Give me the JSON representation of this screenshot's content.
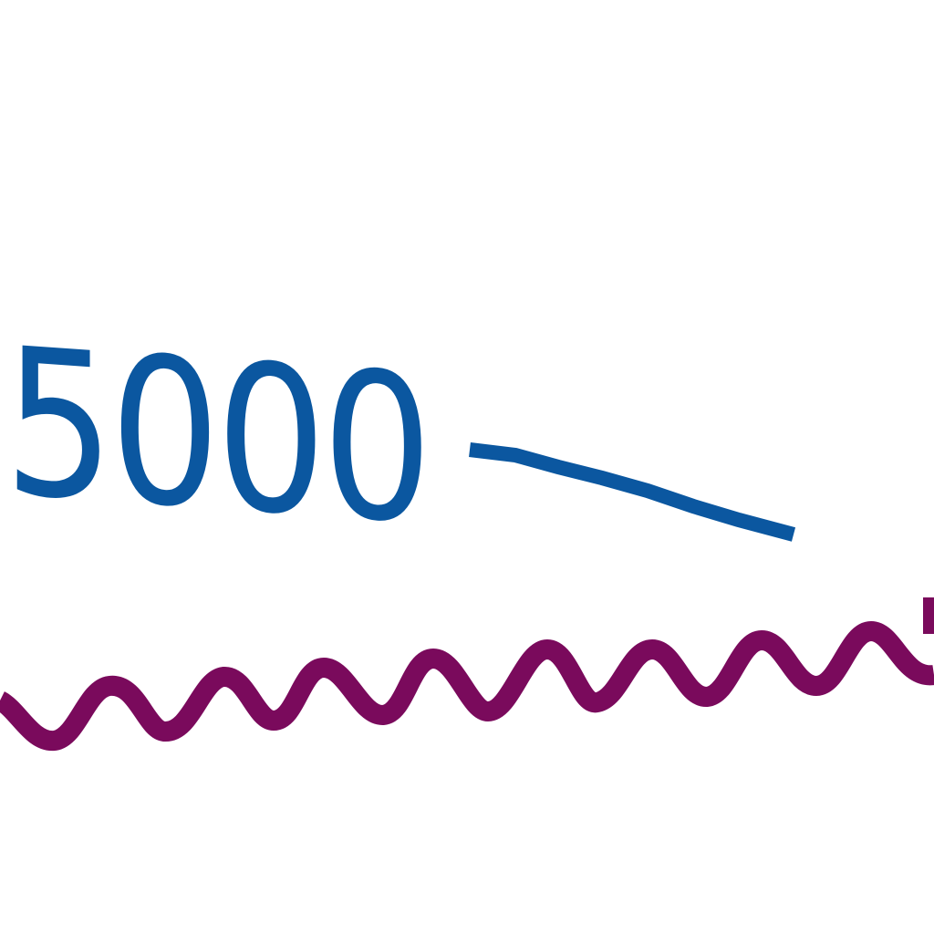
{
  "label": {
    "text": "5000"
  },
  "colors": {
    "background": "#ffffff",
    "label": "#0b57a0",
    "leader_line": "#0b57a0",
    "wavy_line": "#7a0a5c"
  }
}
